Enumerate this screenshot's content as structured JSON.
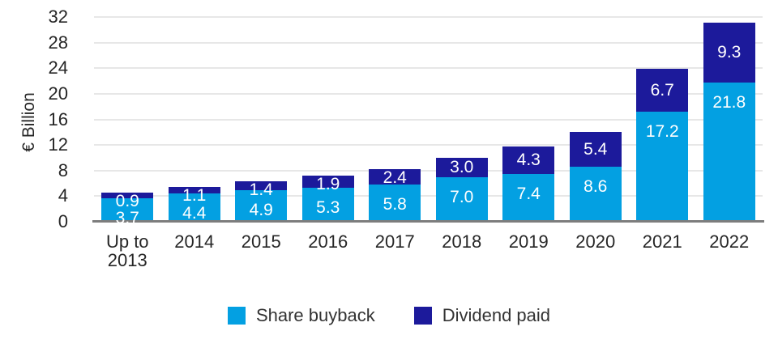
{
  "chart_data": {
    "type": "bar",
    "stacked": true,
    "categories": [
      "Up to 2013",
      "2014",
      "2015",
      "2016",
      "2017",
      "2018",
      "2019",
      "2020",
      "2021",
      "2022"
    ],
    "series": [
      {
        "name": "Share buyback",
        "color": "#03A0E2",
        "values": [
          3.7,
          4.4,
          4.9,
          5.3,
          5.8,
          7.0,
          7.4,
          8.6,
          17.2,
          21.8
        ]
      },
      {
        "name": "Dividend paid",
        "color": "#1C1A9B",
        "values": [
          0.9,
          1.1,
          1.4,
          1.9,
          2.4,
          3.0,
          4.3,
          5.4,
          6.7,
          9.3
        ]
      }
    ],
    "ylabel": "€ Billion",
    "xlabel": "",
    "yticks": [
      0,
      4,
      8,
      12,
      16,
      20,
      24,
      28,
      32
    ],
    "ylim": [
      0,
      32
    ],
    "grid": true,
    "legend_position": "bottom",
    "value_label_format": "one decimal, white, inside segments"
  },
  "colors": {
    "background": "#FFFFFF",
    "gridline": "#E7E7E7",
    "axis_line": "#7D7D7D",
    "text": "#262626",
    "bar_label_text": "#FFFFFF"
  }
}
